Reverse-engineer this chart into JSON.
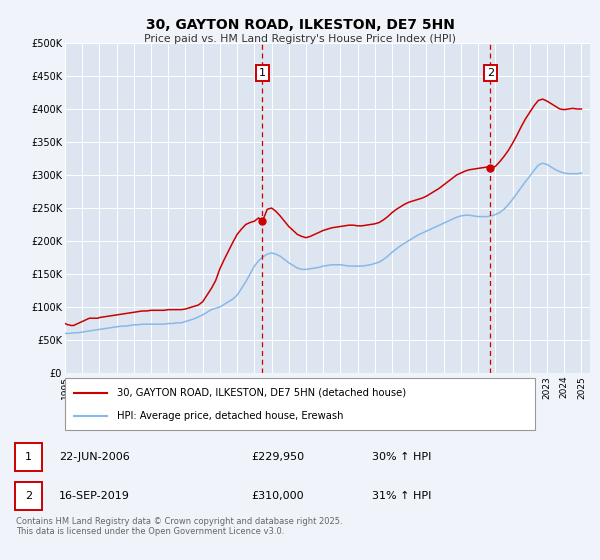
{
  "title": "30, GAYTON ROAD, ILKESTON, DE7 5HN",
  "subtitle": "Price paid vs. HM Land Registry's House Price Index (HPI)",
  "background_color": "#f0f4fa",
  "plot_bg_color": "#dde6f0",
  "grid_color": "#ffffff",
  "red_line_color": "#cc0000",
  "blue_line_color": "#88b8e8",
  "marker1_date": 2006.47,
  "marker2_date": 2019.71,
  "marker1_price": 229950,
  "marker2_price": 310000,
  "marker1_label": "22-JUN-2006",
  "marker2_label": "16-SEP-2019",
  "marker1_pct": "30% ↑ HPI",
  "marker2_pct": "31% ↑ HPI",
  "legend_label_red": "30, GAYTON ROAD, ILKESTON, DE7 5HN (detached house)",
  "legend_label_blue": "HPI: Average price, detached house, Erewash",
  "footer": "Contains HM Land Registry data © Crown copyright and database right 2025.\nThis data is licensed under the Open Government Licence v3.0.",
  "xmin": 1995,
  "xmax": 2025.5,
  "ymin": 0,
  "ymax": 500000,
  "yticks": [
    0,
    50000,
    100000,
    150000,
    200000,
    250000,
    300000,
    350000,
    400000,
    450000,
    500000
  ],
  "ytick_labels": [
    "£0",
    "£50K",
    "£100K",
    "£150K",
    "£200K",
    "£250K",
    "£300K",
    "£350K",
    "£400K",
    "£450K",
    "£500K"
  ],
  "xticks": [
    1995,
    1996,
    1997,
    1998,
    1999,
    2000,
    2001,
    2002,
    2003,
    2004,
    2005,
    2006,
    2007,
    2008,
    2009,
    2010,
    2011,
    2012,
    2013,
    2014,
    2015,
    2016,
    2017,
    2018,
    2019,
    2020,
    2021,
    2022,
    2023,
    2024,
    2025
  ],
  "red_x": [
    1995.0,
    1995.08,
    1995.17,
    1995.25,
    1995.33,
    1995.42,
    1995.5,
    1995.58,
    1995.67,
    1995.75,
    1995.83,
    1995.92,
    1996.0,
    1996.08,
    1996.17,
    1996.25,
    1996.33,
    1996.42,
    1996.5,
    1996.58,
    1996.67,
    1996.75,
    1996.83,
    1996.92,
    1997.0,
    1997.25,
    1997.5,
    1997.75,
    1998.0,
    1998.25,
    1998.5,
    1998.75,
    1999.0,
    1999.25,
    1999.5,
    1999.75,
    2000.0,
    2000.25,
    2000.5,
    2000.75,
    2001.0,
    2001.25,
    2001.5,
    2001.75,
    2002.0,
    2002.25,
    2002.5,
    2002.75,
    2003.0,
    2003.25,
    2003.5,
    2003.75,
    2004.0,
    2004.25,
    2004.5,
    2004.75,
    2005.0,
    2005.25,
    2005.5,
    2005.75,
    2006.0,
    2006.25,
    2006.47,
    2006.75,
    2007.0,
    2007.25,
    2007.5,
    2007.75,
    2008.0,
    2008.25,
    2008.5,
    2008.75,
    2009.0,
    2009.25,
    2009.5,
    2009.75,
    2010.0,
    2010.25,
    2010.5,
    2010.75,
    2011.0,
    2011.25,
    2011.5,
    2011.75,
    2012.0,
    2012.25,
    2012.5,
    2012.75,
    2013.0,
    2013.25,
    2013.5,
    2013.75,
    2014.0,
    2014.25,
    2014.5,
    2014.75,
    2015.0,
    2015.25,
    2015.5,
    2015.75,
    2016.0,
    2016.25,
    2016.5,
    2016.75,
    2017.0,
    2017.25,
    2017.5,
    2017.75,
    2018.0,
    2018.25,
    2018.5,
    2018.75,
    2019.0,
    2019.25,
    2019.5,
    2019.71,
    2020.0,
    2020.25,
    2020.5,
    2020.75,
    2021.0,
    2021.25,
    2021.5,
    2021.75,
    2022.0,
    2022.25,
    2022.5,
    2022.75,
    2023.0,
    2023.25,
    2023.5,
    2023.75,
    2024.0,
    2024.25,
    2024.5,
    2024.75,
    2025.0
  ],
  "red_y": [
    75000,
    74000,
    73000,
    73000,
    72000,
    72000,
    72000,
    73000,
    74000,
    75000,
    76000,
    77000,
    78000,
    79000,
    80000,
    81000,
    82000,
    83000,
    83000,
    83000,
    83000,
    83000,
    83000,
    83000,
    84000,
    85000,
    86000,
    87000,
    88000,
    89000,
    90000,
    91000,
    92000,
    93000,
    94000,
    94000,
    95000,
    95000,
    95000,
    95000,
    96000,
    96000,
    96000,
    96000,
    97000,
    99000,
    101000,
    103000,
    108000,
    118000,
    128000,
    140000,
    158000,
    172000,
    185000,
    198000,
    210000,
    218000,
    225000,
    228000,
    230000,
    235000,
    229950,
    248000,
    250000,
    245000,
    238000,
    230000,
    222000,
    216000,
    210000,
    207000,
    205000,
    207000,
    210000,
    213000,
    216000,
    218000,
    220000,
    221000,
    222000,
    223000,
    224000,
    224000,
    223000,
    223000,
    224000,
    225000,
    226000,
    228000,
    232000,
    237000,
    243000,
    248000,
    252000,
    256000,
    259000,
    261000,
    263000,
    265000,
    268000,
    272000,
    276000,
    280000,
    285000,
    290000,
    295000,
    300000,
    303000,
    306000,
    308000,
    309000,
    310000,
    311000,
    312000,
    310000,
    313000,
    320000,
    328000,
    337000,
    348000,
    360000,
    373000,
    385000,
    395000,
    405000,
    413000,
    415000,
    412000,
    408000,
    404000,
    400000,
    399000,
    400000,
    401000,
    400000,
    400000
  ],
  "blue_x": [
    1995.0,
    1995.25,
    1995.5,
    1995.75,
    1996.0,
    1996.25,
    1996.5,
    1996.75,
    1997.0,
    1997.25,
    1997.5,
    1997.75,
    1998.0,
    1998.25,
    1998.5,
    1998.75,
    1999.0,
    1999.25,
    1999.5,
    1999.75,
    2000.0,
    2000.25,
    2000.5,
    2000.75,
    2001.0,
    2001.25,
    2001.5,
    2001.75,
    2002.0,
    2002.25,
    2002.5,
    2002.75,
    2003.0,
    2003.25,
    2003.5,
    2003.75,
    2004.0,
    2004.25,
    2004.5,
    2004.75,
    2005.0,
    2005.25,
    2005.5,
    2005.75,
    2006.0,
    2006.25,
    2006.5,
    2006.75,
    2007.0,
    2007.25,
    2007.5,
    2007.75,
    2008.0,
    2008.25,
    2008.5,
    2008.75,
    2009.0,
    2009.25,
    2009.5,
    2009.75,
    2010.0,
    2010.25,
    2010.5,
    2010.75,
    2011.0,
    2011.25,
    2011.5,
    2011.75,
    2012.0,
    2012.25,
    2012.5,
    2012.75,
    2013.0,
    2013.25,
    2013.5,
    2013.75,
    2014.0,
    2014.25,
    2014.5,
    2014.75,
    2015.0,
    2015.25,
    2015.5,
    2015.75,
    2016.0,
    2016.25,
    2016.5,
    2016.75,
    2017.0,
    2017.25,
    2017.5,
    2017.75,
    2018.0,
    2018.25,
    2018.5,
    2018.75,
    2019.0,
    2019.25,
    2019.5,
    2019.75,
    2020.0,
    2020.25,
    2020.5,
    2020.75,
    2021.0,
    2021.25,
    2021.5,
    2021.75,
    2022.0,
    2022.25,
    2022.5,
    2022.75,
    2023.0,
    2023.25,
    2023.5,
    2023.75,
    2024.0,
    2024.25,
    2024.5,
    2024.75,
    2025.0
  ],
  "blue_y": [
    60000,
    60000,
    61000,
    61000,
    62000,
    63000,
    64000,
    65000,
    66000,
    67000,
    68000,
    69000,
    70000,
    71000,
    71000,
    72000,
    73000,
    73000,
    74000,
    74000,
    74000,
    74000,
    74000,
    74000,
    75000,
    75000,
    76000,
    76000,
    78000,
    80000,
    82000,
    85000,
    88000,
    92000,
    96000,
    98000,
    100000,
    104000,
    108000,
    112000,
    118000,
    128000,
    138000,
    150000,
    162000,
    170000,
    176000,
    180000,
    182000,
    180000,
    177000,
    172000,
    167000,
    163000,
    159000,
    157000,
    157000,
    158000,
    159000,
    160000,
    162000,
    163000,
    164000,
    164000,
    164000,
    163000,
    162000,
    162000,
    162000,
    162000,
    163000,
    164000,
    166000,
    168000,
    172000,
    177000,
    183000,
    188000,
    193000,
    197000,
    201000,
    205000,
    209000,
    212000,
    215000,
    218000,
    221000,
    224000,
    227000,
    230000,
    233000,
    236000,
    238000,
    239000,
    239000,
    238000,
    237000,
    237000,
    237000,
    238000,
    240000,
    243000,
    248000,
    255000,
    263000,
    272000,
    281000,
    290000,
    298000,
    307000,
    315000,
    318000,
    316000,
    312000,
    308000,
    305000,
    303000,
    302000,
    302000,
    302000,
    303000
  ]
}
